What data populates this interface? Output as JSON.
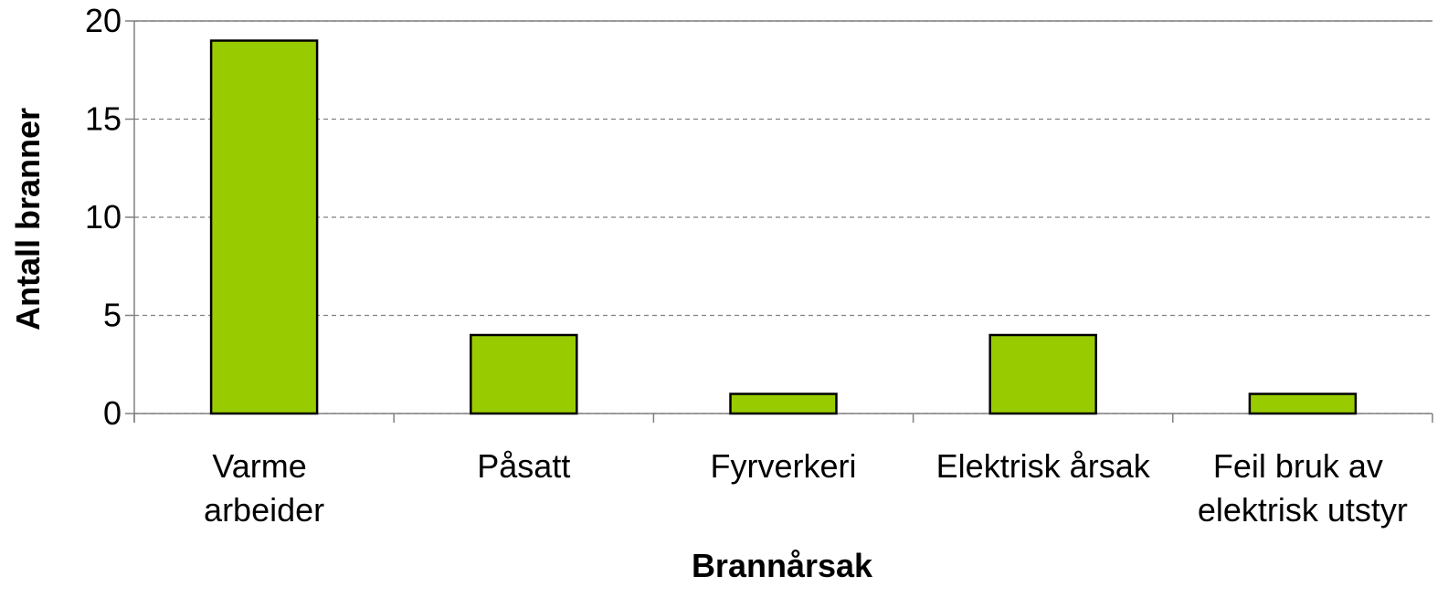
{
  "chart_data": {
    "type": "bar",
    "categories": [
      "Varme arbeider",
      "Påsatt",
      "Fyrverkeri",
      "Elektrisk årsak",
      "Feil bruk av elektrisk utstyr"
    ],
    "values": [
      19,
      4,
      1,
      4,
      1
    ],
    "color": "#99cc00",
    "xlabel": "Brannårsak",
    "ylabel": "Antall branner",
    "ylim": [
      0,
      20
    ],
    "yticks": [
      0,
      5,
      10,
      15,
      20
    ],
    "grid": true
  }
}
